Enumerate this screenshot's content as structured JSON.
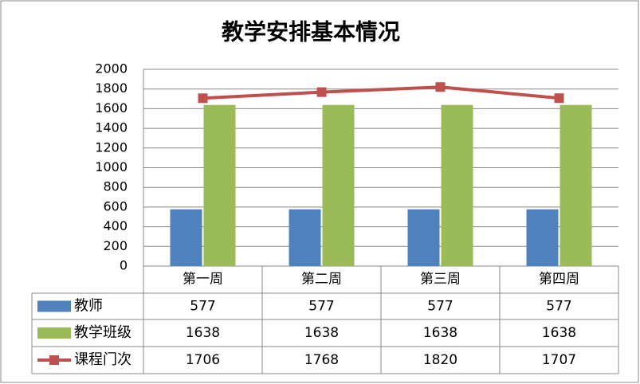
{
  "chart_data": {
    "type": "combo",
    "title": "教学安排基本情况",
    "categories": [
      "第一周",
      "第二周",
      "第三周",
      "第四周"
    ],
    "series": [
      {
        "name": "教师",
        "type": "bar",
        "color": "#4f81bd",
        "values": [
          577,
          577,
          577,
          577
        ]
      },
      {
        "name": "教学班级",
        "type": "bar",
        "color": "#9bbb59",
        "values": [
          1638,
          1638,
          1638,
          1638
        ]
      },
      {
        "name": "课程门次",
        "type": "line",
        "color": "#c0504d",
        "values": [
          1706,
          1768,
          1820,
          1707
        ]
      }
    ],
    "ylim": [
      0,
      2000
    ],
    "yticks": [
      0,
      200,
      400,
      600,
      800,
      1000,
      1200,
      1400,
      1600,
      1800,
      2000
    ],
    "grid": true
  }
}
